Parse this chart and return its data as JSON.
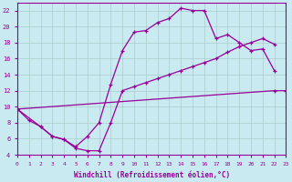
{
  "bg_color": "#c8eaf0",
  "line_color": "#990099",
  "grid_color": "#aacccc",
  "xlabel": "Windchill (Refroidissement éolien,°C)",
  "xmin": 0,
  "xmax": 23,
  "ymin": 4,
  "ymax": 23,
  "yticks": [
    4,
    6,
    8,
    10,
    12,
    14,
    16,
    18,
    20,
    22
  ],
  "xticks": [
    0,
    1,
    2,
    3,
    4,
    5,
    6,
    7,
    8,
    9,
    10,
    11,
    12,
    13,
    14,
    15,
    16,
    17,
    18,
    19,
    20,
    21,
    22,
    23
  ],
  "line1_x": [
    0,
    1,
    2,
    3,
    4,
    5,
    6,
    7,
    8,
    9,
    10,
    11,
    12,
    13,
    14,
    15,
    16,
    17,
    18,
    19,
    20,
    21,
    22
  ],
  "line1_y": [
    9.7,
    8.3,
    7.5,
    6.3,
    5.9,
    5.0,
    6.3,
    8.0,
    12.8,
    17.0,
    19.3,
    19.5,
    20.5,
    21.0,
    22.3,
    22.0,
    22.0,
    18.5,
    19.0,
    18.0,
    17.0,
    17.2,
    14.5
  ],
  "line2_x": [
    0,
    2,
    3,
    4,
    5,
    6,
    7,
    8,
    9,
    10,
    11,
    12,
    13,
    14,
    15,
    16,
    17,
    18,
    19,
    20,
    21,
    22
  ],
  "line2_y": [
    9.7,
    7.5,
    6.3,
    5.9,
    4.8,
    4.5,
    4.5,
    8.0,
    12.0,
    12.5,
    13.0,
    13.5,
    14.0,
    14.5,
    15.0,
    15.5,
    16.0,
    16.8,
    17.5,
    18.0,
    18.5,
    17.8
  ],
  "line3_x": [
    0,
    22,
    23
  ],
  "line3_y": [
    9.7,
    12.0,
    12.0
  ]
}
